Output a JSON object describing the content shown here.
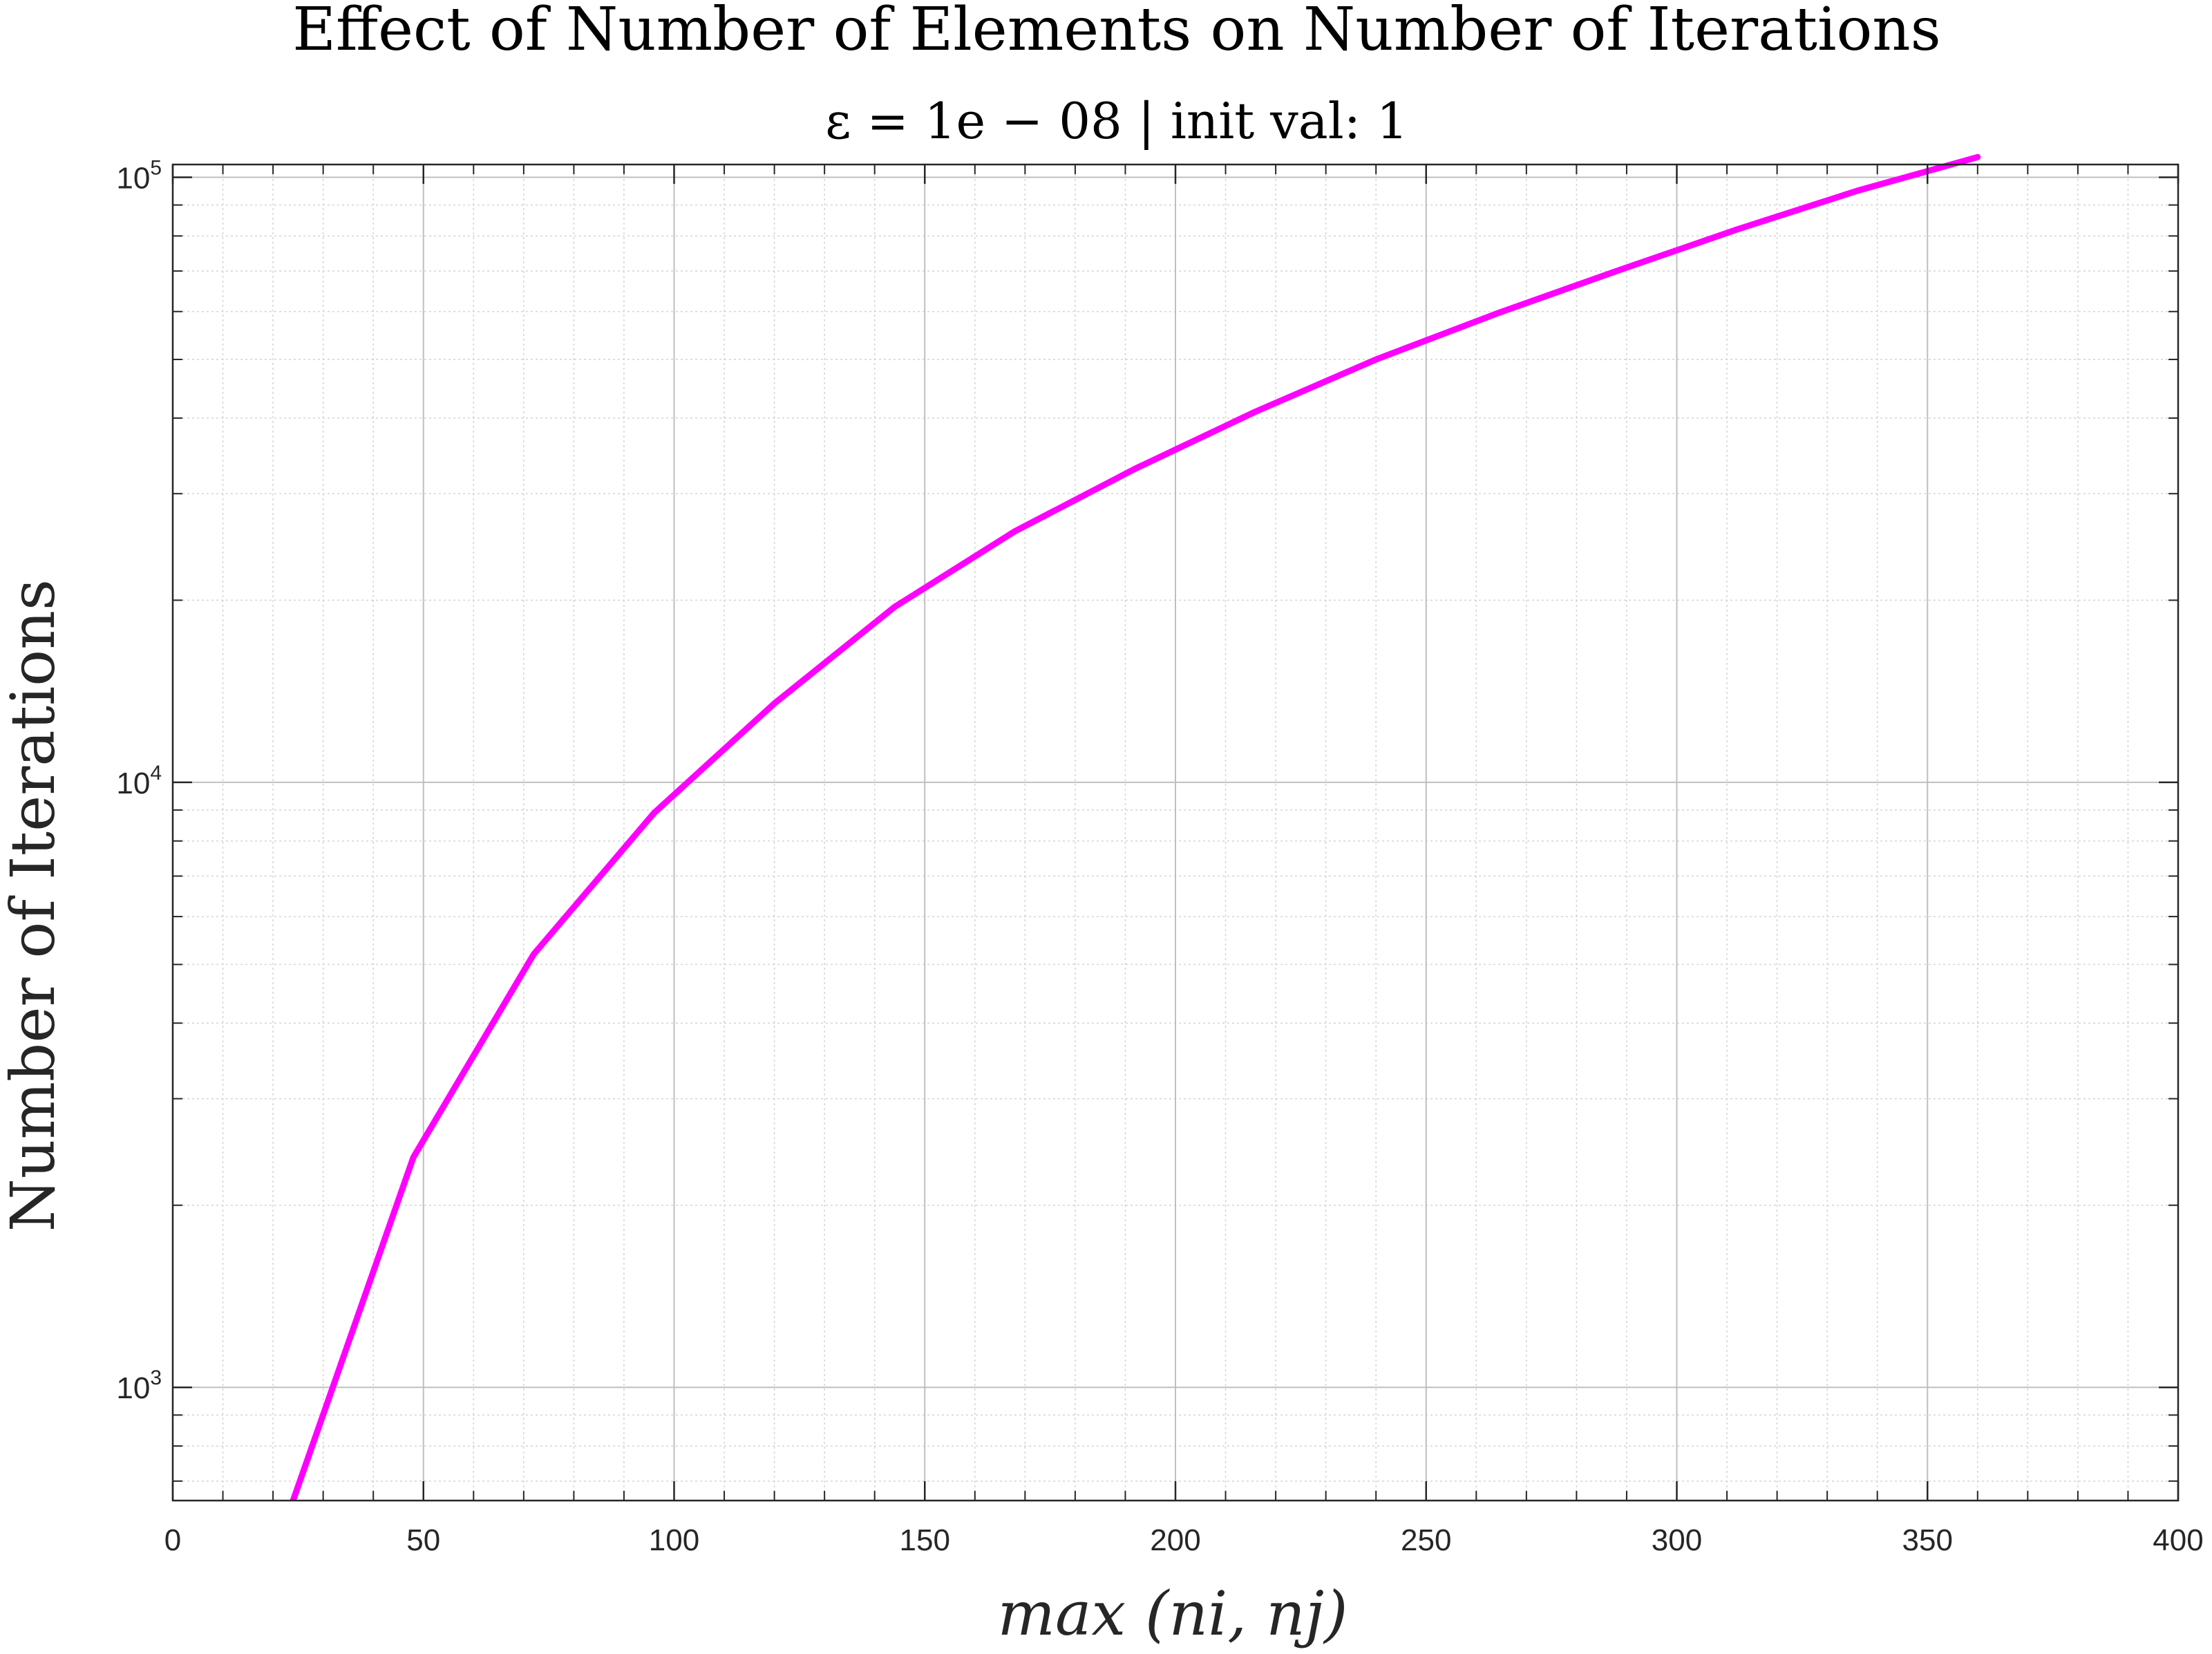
{
  "chart_data": {
    "type": "line",
    "title": "Effect of Number of Elements on Number of Iterations",
    "subtitle": "ε = 1e − 08 | init val: 1",
    "xlabel": "max (ni, nj)",
    "ylabel": "Number of Iterations",
    "xlim": [
      0,
      400
    ],
    "ylim": [
      650,
      105000
    ],
    "yscale": "log",
    "grid": "on",
    "x_ticks": [
      0,
      50,
      100,
      150,
      200,
      250,
      300,
      350,
      400
    ],
    "x_tick_labels": [
      "0",
      "50",
      "100",
      "150",
      "200",
      "250",
      "300",
      "350",
      "400"
    ],
    "y_ticks": [
      1000,
      10000,
      100000
    ],
    "y_tick_labels": [
      {
        "base": "10",
        "exp": "3"
      },
      {
        "base": "10",
        "exp": "4"
      },
      {
        "base": "10",
        "exp": "5"
      }
    ],
    "series": [
      {
        "color": "#ff00ff",
        "x": [
          24,
          48,
          72,
          96,
          120,
          144,
          168,
          192,
          216,
          240,
          264,
          288,
          312,
          336,
          360
        ],
        "y": [
          650,
          2400,
          5200,
          8900,
          13500,
          19500,
          26000,
          33000,
          41000,
          50000,
          59500,
          70000,
          82000,
          95000,
          108000
        ]
      }
    ]
  }
}
